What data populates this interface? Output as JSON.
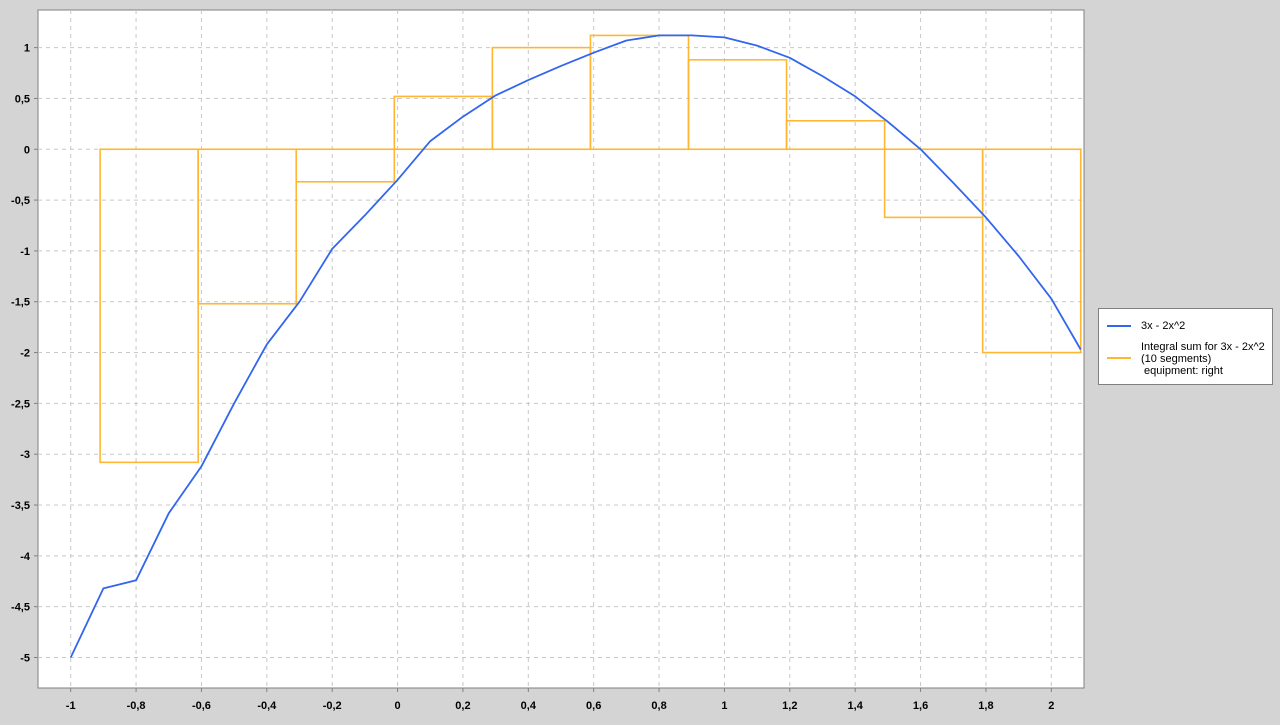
{
  "chart_data": {
    "type": "line",
    "title": "",
    "xlabel": "",
    "ylabel": "",
    "xlim": [
      -1.1,
      2.1
    ],
    "ylim": [
      -5.3,
      1.37
    ],
    "grid": true,
    "x_ticks": [
      -1,
      -0.8,
      -0.6,
      -0.4,
      -0.2,
      0,
      0.2,
      0.4,
      0.6,
      0.8,
      1,
      1.2,
      1.4,
      1.6,
      1.8,
      2
    ],
    "x_tick_labels": [
      "-1",
      "-0,8",
      "-0,6",
      "-0,4",
      "-0,2",
      "0",
      "0,2",
      "0,4",
      "0,6",
      "0,8",
      "1",
      "1,2",
      "1,4",
      "1,6",
      "1,8",
      "2"
    ],
    "y_ticks": [
      1,
      0.5,
      0,
      -0.5,
      -1,
      -1.5,
      -2,
      -2.5,
      -3,
      -3.5,
      -4,
      -4.5,
      -5
    ],
    "y_tick_labels": [
      "1",
      "0,5",
      "0",
      "-0,5",
      "-1",
      "-1,5",
      "-2",
      "-2,5",
      "-3",
      "-3,5",
      "-4",
      "-4,5",
      "-5"
    ],
    "series": [
      {
        "name": "3x - 2x^2",
        "color": "#3366ee",
        "x": [
          -1,
          -0.9,
          -0.8,
          -0.7,
          -0.6,
          -0.5,
          -0.4,
          -0.3,
          -0.2,
          -0.1,
          0,
          0.1,
          0.2,
          0.3,
          0.4,
          0.5,
          0.6,
          0.7,
          0.8,
          0.9,
          1,
          1.1,
          1.2,
          1.3,
          1.4,
          1.5,
          1.6,
          1.7,
          1.8,
          1.9,
          2,
          2.09
        ],
        "y": [
          -5,
          -4.32,
          -4.24,
          -3.58,
          -3.12,
          -2.5,
          -1.92,
          -1.5,
          -0.98,
          -0.65,
          -0.3,
          0.08,
          0.32,
          0.53,
          0.68,
          0.82,
          0.95,
          1.07,
          1.12,
          1.12,
          1.1,
          1.02,
          0.9,
          0.72,
          0.52,
          0.27,
          0,
          -0.33,
          -0.67,
          -1.05,
          -1.47,
          -1.97
        ]
      },
      {
        "name": "Integral sum for 3x - 2x^2",
        "name_line2": "(10 segments)",
        "name_line3": " equipment: right",
        "color": "#ffb733",
        "type": "step-rectangles",
        "rectangles": [
          {
            "x0": -0.91,
            "x1": -0.61,
            "height": -3.08
          },
          {
            "x0": -0.61,
            "x1": -0.31,
            "height": -1.52
          },
          {
            "x0": -0.31,
            "x1": -0.01,
            "height": -0.32
          },
          {
            "x0": -0.01,
            "x1": 0.29,
            "height": 0.52
          },
          {
            "x0": 0.29,
            "x1": 0.59,
            "height": 1.0
          },
          {
            "x0": 0.59,
            "x1": 0.89,
            "height": 1.12
          },
          {
            "x0": 0.89,
            "x1": 1.19,
            "height": 0.88
          },
          {
            "x0": 1.19,
            "x1": 1.49,
            "height": 0.28
          },
          {
            "x0": 1.49,
            "x1": 1.79,
            "height": -0.67
          },
          {
            "x0": 1.79,
            "x1": 2.09,
            "height": -2.0
          }
        ]
      }
    ],
    "legend_position": "right",
    "colors": {
      "background": "#d4d4d4",
      "plot_background": "#ffffff",
      "grid": "#c8c8c8",
      "axis": "#808080"
    }
  }
}
